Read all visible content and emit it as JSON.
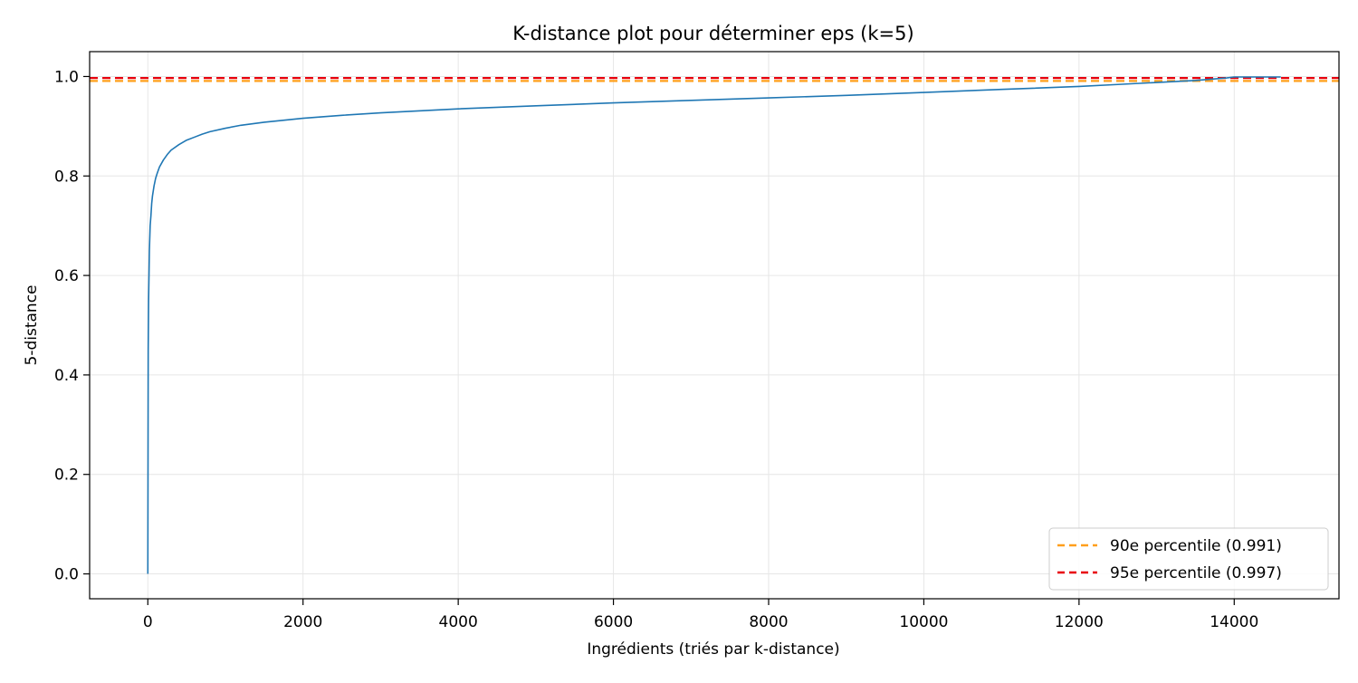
{
  "chart_data": {
    "type": "line",
    "title": "K-distance plot pour déterminer eps (k=5)",
    "xlabel": "Ingrédients (triés par k-distance)",
    "ylabel": "5-distance",
    "xlim": [
      -750,
      15350
    ],
    "ylim": [
      -0.05,
      1.05
    ],
    "xticks": [
      0,
      2000,
      4000,
      6000,
      8000,
      10000,
      12000,
      14000
    ],
    "yticks": [
      0.0,
      0.2,
      0.4,
      0.6,
      0.8,
      1.0
    ],
    "xtick_labels": [
      "0",
      "2000",
      "4000",
      "6000",
      "8000",
      "10000",
      "12000",
      "14000"
    ],
    "ytick_labels": [
      "0.0",
      "0.2",
      "0.4",
      "0.6",
      "0.8",
      "1.0"
    ],
    "grid": true,
    "legend_position": "lower-right",
    "series": [
      {
        "color": "#1f77b4",
        "style": "solid",
        "x": [
          0,
          5,
          10,
          15,
          20,
          30,
          40,
          50,
          60,
          80,
          100,
          120,
          150,
          200,
          250,
          300,
          400,
          500,
          600,
          700,
          800,
          1000,
          1200,
          1500,
          2000,
          2500,
          3000,
          4000,
          5000,
          6000,
          7000,
          8000,
          9000,
          10000,
          11000,
          12000,
          12500,
          13000,
          13500,
          13900,
          14000,
          14200,
          14400,
          14600
        ],
        "y": [
          0.0,
          0.45,
          0.55,
          0.6,
          0.65,
          0.7,
          0.72,
          0.745,
          0.76,
          0.78,
          0.795,
          0.805,
          0.818,
          0.832,
          0.843,
          0.852,
          0.863,
          0.872,
          0.878,
          0.884,
          0.889,
          0.896,
          0.902,
          0.908,
          0.916,
          0.922,
          0.927,
          0.935,
          0.941,
          0.947,
          0.952,
          0.957,
          0.962,
          0.968,
          0.974,
          0.98,
          0.984,
          0.988,
          0.992,
          0.997,
          0.999,
          0.999,
          0.999,
          0.999
        ]
      }
    ],
    "hlines": [
      {
        "name": "90e percentile (0.991)",
        "y": 0.991,
        "color": "#ff9f1c",
        "style": "dashed"
      },
      {
        "name": "95e percentile (0.997)",
        "y": 0.997,
        "color": "#e8000b",
        "style": "dashed"
      }
    ]
  }
}
